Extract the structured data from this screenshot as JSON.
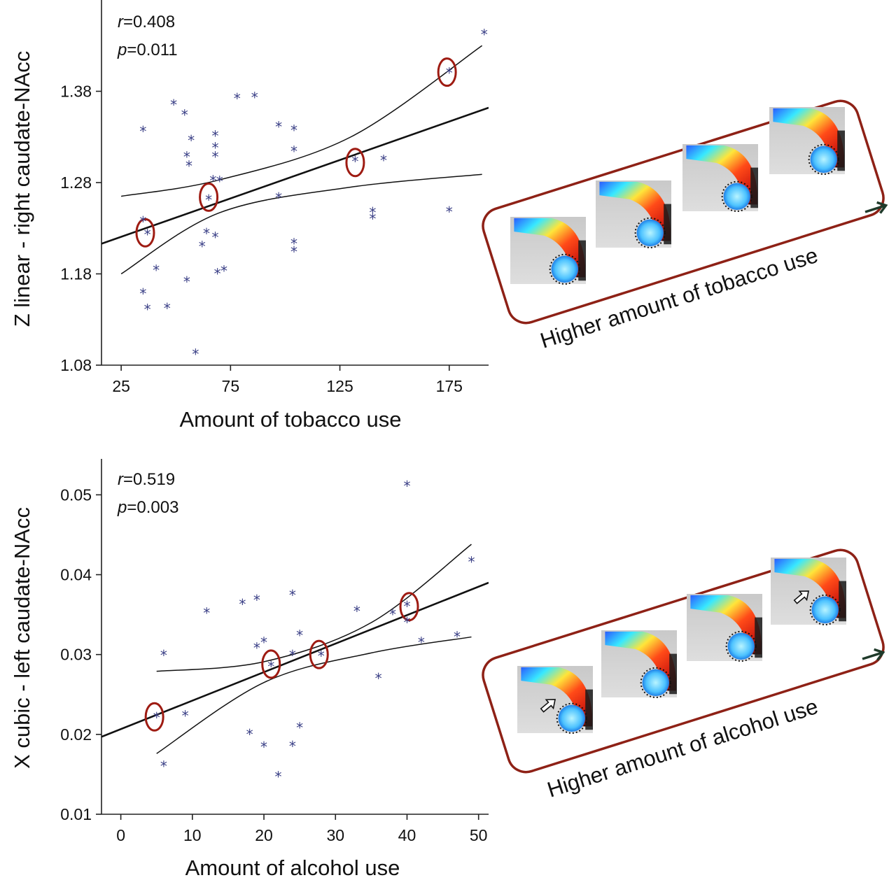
{
  "chart_data": [
    {
      "type": "scatter",
      "xlabel": "Amount of tobacco use",
      "ylabel": "Z linear - right caudate-NAcc",
      "xticks": [
        25,
        75,
        125,
        175
      ],
      "yticks": [
        1.08,
        1.18,
        1.28,
        1.38
      ],
      "xlim": [
        16,
        193
      ],
      "ylim": [
        1.08,
        1.48
      ],
      "stats": {
        "r_label": "r",
        "r_value": "=0.408",
        "p_label": "p",
        "p_value": "=0.011"
      },
      "marker": "*",
      "points": [
        [
          35,
          1.237
        ],
        [
          35,
          1.336
        ],
        [
          35,
          1.158
        ],
        [
          37,
          1.141
        ],
        [
          37,
          1.223
        ],
        [
          41,
          1.184
        ],
        [
          46,
          1.142
        ],
        [
          49,
          1.365
        ],
        [
          54,
          1.354
        ],
        [
          55,
          1.308
        ],
        [
          55,
          1.171
        ],
        [
          56,
          1.298
        ],
        [
          57,
          1.326
        ],
        [
          59,
          1.092
        ],
        [
          62,
          1.21
        ],
        [
          64,
          1.224
        ],
        [
          65,
          1.261
        ],
        [
          67,
          1.282
        ],
        [
          68,
          1.22
        ],
        [
          68,
          1.331
        ],
        [
          68,
          1.318
        ],
        [
          68,
          1.308
        ],
        [
          69,
          1.18
        ],
        [
          70,
          1.281
        ],
        [
          72,
          1.183
        ],
        [
          78,
          1.372
        ],
        [
          86,
          1.373
        ],
        [
          97,
          1.341
        ],
        [
          97,
          1.263
        ],
        [
          104,
          1.337
        ],
        [
          104,
          1.314
        ],
        [
          104,
          1.213
        ],
        [
          104,
          1.204
        ],
        [
          132,
          1.303
        ],
        [
          140,
          1.247
        ],
        [
          140,
          1.24
        ],
        [
          145,
          1.304
        ],
        [
          175,
          1.248
        ],
        [
          175,
          1.4
        ],
        [
          191,
          1.442
        ]
      ],
      "regression": {
        "x": [
          16,
          193
        ],
        "y": [
          1.213,
          1.362
        ]
      },
      "ci_upper": {
        "x": [
          25,
          70,
          130,
          190
        ],
        "y": [
          1.265,
          1.283,
          1.33,
          1.43
        ]
      },
      "ci_lower": {
        "x": [
          25,
          70,
          130,
          190
        ],
        "y": [
          1.18,
          1.247,
          1.275,
          1.289
        ]
      },
      "highlighted": [
        [
          36,
          1.225
        ],
        [
          65,
          1.264
        ],
        [
          132,
          1.302
        ],
        [
          174,
          1.401
        ]
      ]
    },
    {
      "type": "scatter",
      "xlabel": "Amount of alcohol use",
      "ylabel": "X cubic - left caudate-NAcc",
      "xticks": [
        0,
        10,
        20,
        30,
        40,
        50
      ],
      "yticks": [
        0.01,
        0.02,
        0.03,
        0.04,
        0.05
      ],
      "xlim": [
        -2.7,
        51.4
      ],
      "ylim": [
        0.01,
        0.0545
      ],
      "stats": {
        "r_label": "r",
        "r_value": "=0.519",
        "p_label": "p",
        "p_value": "=0.003"
      },
      "marker": "*",
      "points": [
        [
          5,
          0.0221
        ],
        [
          6,
          0.0299
        ],
        [
          6,
          0.016
        ],
        [
          9,
          0.0223
        ],
        [
          12,
          0.0352
        ],
        [
          17,
          0.0363
        ],
        [
          18,
          0.02
        ],
        [
          19,
          0.0368
        ],
        [
          19,
          0.0308
        ],
        [
          20,
          0.0315
        ],
        [
          20,
          0.0184
        ],
        [
          21,
          0.0285
        ],
        [
          22,
          0.0147
        ],
        [
          24,
          0.0374
        ],
        [
          24,
          0.0299
        ],
        [
          24,
          0.0185
        ],
        [
          25,
          0.0324
        ],
        [
          25,
          0.0208
        ],
        [
          28,
          0.0298
        ],
        [
          33,
          0.0354
        ],
        [
          36,
          0.027
        ],
        [
          38,
          0.035
        ],
        [
          40,
          0.0511
        ],
        [
          40,
          0.036
        ],
        [
          40,
          0.034
        ],
        [
          42,
          0.0315
        ],
        [
          47,
          0.0322
        ],
        [
          49,
          0.0416
        ]
      ],
      "regression": {
        "x": [
          -2.7,
          51.4
        ],
        "y": [
          0.0197,
          0.039
        ]
      },
      "ci_upper": {
        "x": [
          5,
          20,
          35,
          49
        ],
        "y": [
          0.0279,
          0.0291,
          0.034,
          0.0438
        ]
      },
      "ci_lower": {
        "x": [
          5,
          20,
          35,
          49
        ],
        "y": [
          0.0176,
          0.0265,
          0.0302,
          0.0322
        ]
      },
      "highlighted": [
        [
          4.7,
          0.0222
        ],
        [
          21,
          0.0288
        ],
        [
          27.7,
          0.03
        ],
        [
          40.3,
          0.036
        ]
      ]
    }
  ],
  "panels": [
    {
      "caption": "Higher amount of tobacco use"
    },
    {
      "caption": "Higher amount of alcohol use"
    }
  ],
  "colors": {
    "points": "#3a3f86",
    "highlight_ring": "#9e1b12",
    "panel_border": "#8e2116",
    "caption_arrow": "#1f3a2a",
    "lines": "#111111"
  }
}
